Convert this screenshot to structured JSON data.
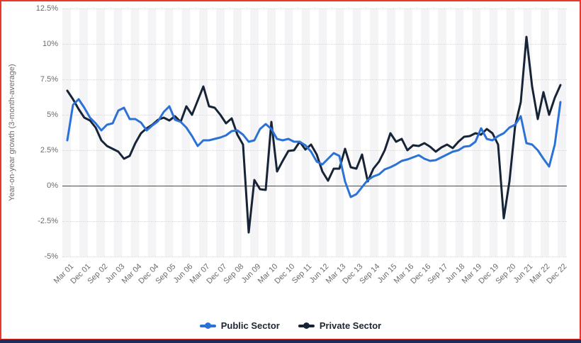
{
  "page": {
    "border_color": "#e8392f",
    "bottom_bar_color": "#1b2d5c",
    "plot_stripe_color": "#f4f4f6"
  },
  "chart_data": {
    "type": "line",
    "title": "",
    "ylabel": "Year-on-year growth (3-month-average)",
    "xlabel": "",
    "ylim": [
      -5,
      12.5
    ],
    "y_ticks": [
      "12.5%",
      "10%",
      "7.5%",
      "5%",
      "2.5%",
      "0%",
      "-2.5%",
      "-5%"
    ],
    "y_tick_values": [
      12.5,
      10,
      7.5,
      5,
      2.5,
      0,
      -2.5,
      -5
    ],
    "grid": "horizontal dotted gridlines, solid zero line, vertical light stripes",
    "legend_position": "bottom",
    "x_tick_labels": [
      "Mar 01",
      "Dec 01",
      "Sep 02",
      "Jun 03",
      "Mar 04",
      "Dec 04",
      "Sep 05",
      "Jun 06",
      "Mar 07",
      "Dec 07",
      "Sep 08",
      "Jun 09",
      "Mar 10",
      "Dec 10",
      "Sep 11",
      "Jun 12",
      "Mar 13",
      "Dec 13",
      "Sep 14",
      "Jun 15",
      "Mar 16",
      "Dec 16",
      "Sep 17",
      "Jun 18",
      "Mar 19",
      "Dec 19",
      "Sep 20",
      "Jun 21",
      "Mar 22",
      "Dec 22"
    ],
    "x": [
      "Mar 01",
      "Jun 01",
      "Sep 01",
      "Dec 01",
      "Mar 02",
      "Jun 02",
      "Sep 02",
      "Dec 02",
      "Mar 03",
      "Jun 03",
      "Sep 03",
      "Dec 03",
      "Mar 04",
      "Jun 04",
      "Sep 04",
      "Dec 04",
      "Mar 05",
      "Jun 05",
      "Sep 05",
      "Dec 05",
      "Mar 06",
      "Jun 06",
      "Sep 06",
      "Dec 06",
      "Mar 07",
      "Jun 07",
      "Sep 07",
      "Dec 07",
      "Mar 08",
      "Jun 08",
      "Sep 08",
      "Dec 08",
      "Mar 09",
      "Jun 09",
      "Sep 09",
      "Dec 09",
      "Mar 10",
      "Jun 10",
      "Sep 10",
      "Dec 10",
      "Mar 11",
      "Jun 11",
      "Sep 11",
      "Dec 11",
      "Mar 12",
      "Jun 12",
      "Sep 12",
      "Dec 12",
      "Mar 13",
      "Jun 13",
      "Sep 13",
      "Dec 13",
      "Mar 14",
      "Jun 14",
      "Sep 14",
      "Dec 14",
      "Mar 15",
      "Jun 15",
      "Sep 15",
      "Dec 15",
      "Mar 16",
      "Jun 16",
      "Sep 16",
      "Dec 16",
      "Mar 17",
      "Jun 17",
      "Sep 17",
      "Dec 17",
      "Mar 18",
      "Jun 18",
      "Sep 18",
      "Dec 18",
      "Mar 19",
      "Jun 19",
      "Sep 19",
      "Dec 19",
      "Mar 20",
      "Jun 20",
      "Sep 20",
      "Dec 20",
      "Mar 21",
      "Jun 21",
      "Sep 21",
      "Dec 21",
      "Mar 22",
      "Jun 22",
      "Sep 22",
      "Dec 22"
    ],
    "series": [
      {
        "name": "Public Sector",
        "color": "#2b72d7",
        "values": [
          3.2,
          5.7,
          6.1,
          5.5,
          4.8,
          4.4,
          3.9,
          4.3,
          4.4,
          5.3,
          5.5,
          4.7,
          4.7,
          4.45,
          3.9,
          4.25,
          4.55,
          5.2,
          5.6,
          4.65,
          4.5,
          4.1,
          3.5,
          2.8,
          3.2,
          3.2,
          3.3,
          3.4,
          3.55,
          3.85,
          3.9,
          3.6,
          3.1,
          3.2,
          4.0,
          4.35,
          4.0,
          3.3,
          3.2,
          3.3,
          3.1,
          3.1,
          2.85,
          2.4,
          1.7,
          1.5,
          1.9,
          2.3,
          2.1,
          0.3,
          -0.8,
          -0.6,
          -0.1,
          0.4,
          0.65,
          0.8,
          1.15,
          1.3,
          1.5,
          1.75,
          1.85,
          2.0,
          2.15,
          1.9,
          1.75,
          1.8,
          2.0,
          2.2,
          2.4,
          2.5,
          2.75,
          2.8,
          3.1,
          4.05,
          3.3,
          3.2,
          3.5,
          3.7,
          4.1,
          4.3,
          4.9,
          3.0,
          2.9,
          2.5,
          1.9,
          1.35,
          2.9,
          5.9
        ]
      },
      {
        "name": "Private Sector",
        "color": "#172437",
        "values": [
          6.7,
          6.1,
          5.4,
          4.8,
          4.6,
          4.1,
          3.2,
          2.8,
          2.6,
          2.4,
          1.9,
          2.1,
          3.0,
          3.7,
          4.05,
          4.3,
          4.65,
          4.8,
          4.6,
          4.9,
          4.5,
          5.6,
          5.0,
          6.0,
          7.0,
          5.6,
          5.5,
          5.0,
          4.4,
          4.75,
          3.6,
          2.9,
          -3.3,
          0.4,
          -0.25,
          -0.3,
          4.5,
          1.0,
          1.75,
          2.45,
          2.5,
          3.1,
          2.55,
          2.9,
          2.2,
          1.0,
          0.35,
          1.2,
          1.2,
          2.6,
          1.3,
          1.2,
          2.2,
          0.3,
          1.2,
          1.7,
          2.5,
          3.7,
          3.1,
          3.3,
          2.5,
          2.85,
          2.8,
          3.0,
          2.75,
          2.4,
          2.7,
          2.9,
          2.65,
          3.1,
          3.45,
          3.5,
          3.7,
          3.6,
          4.0,
          3.7,
          2.9,
          -2.3,
          0.3,
          4.2,
          5.9,
          10.5,
          7.0,
          4.7,
          6.6,
          5.0,
          6.2,
          7.1
        ]
      }
    ],
    "style": {
      "line_width": 3,
      "gridline_color": "#d7d7d7",
      "zero_line_color": "#4a4a4a",
      "tick_label_color": "#6b6b6b",
      "legend_text_color": "#1c2733"
    }
  }
}
